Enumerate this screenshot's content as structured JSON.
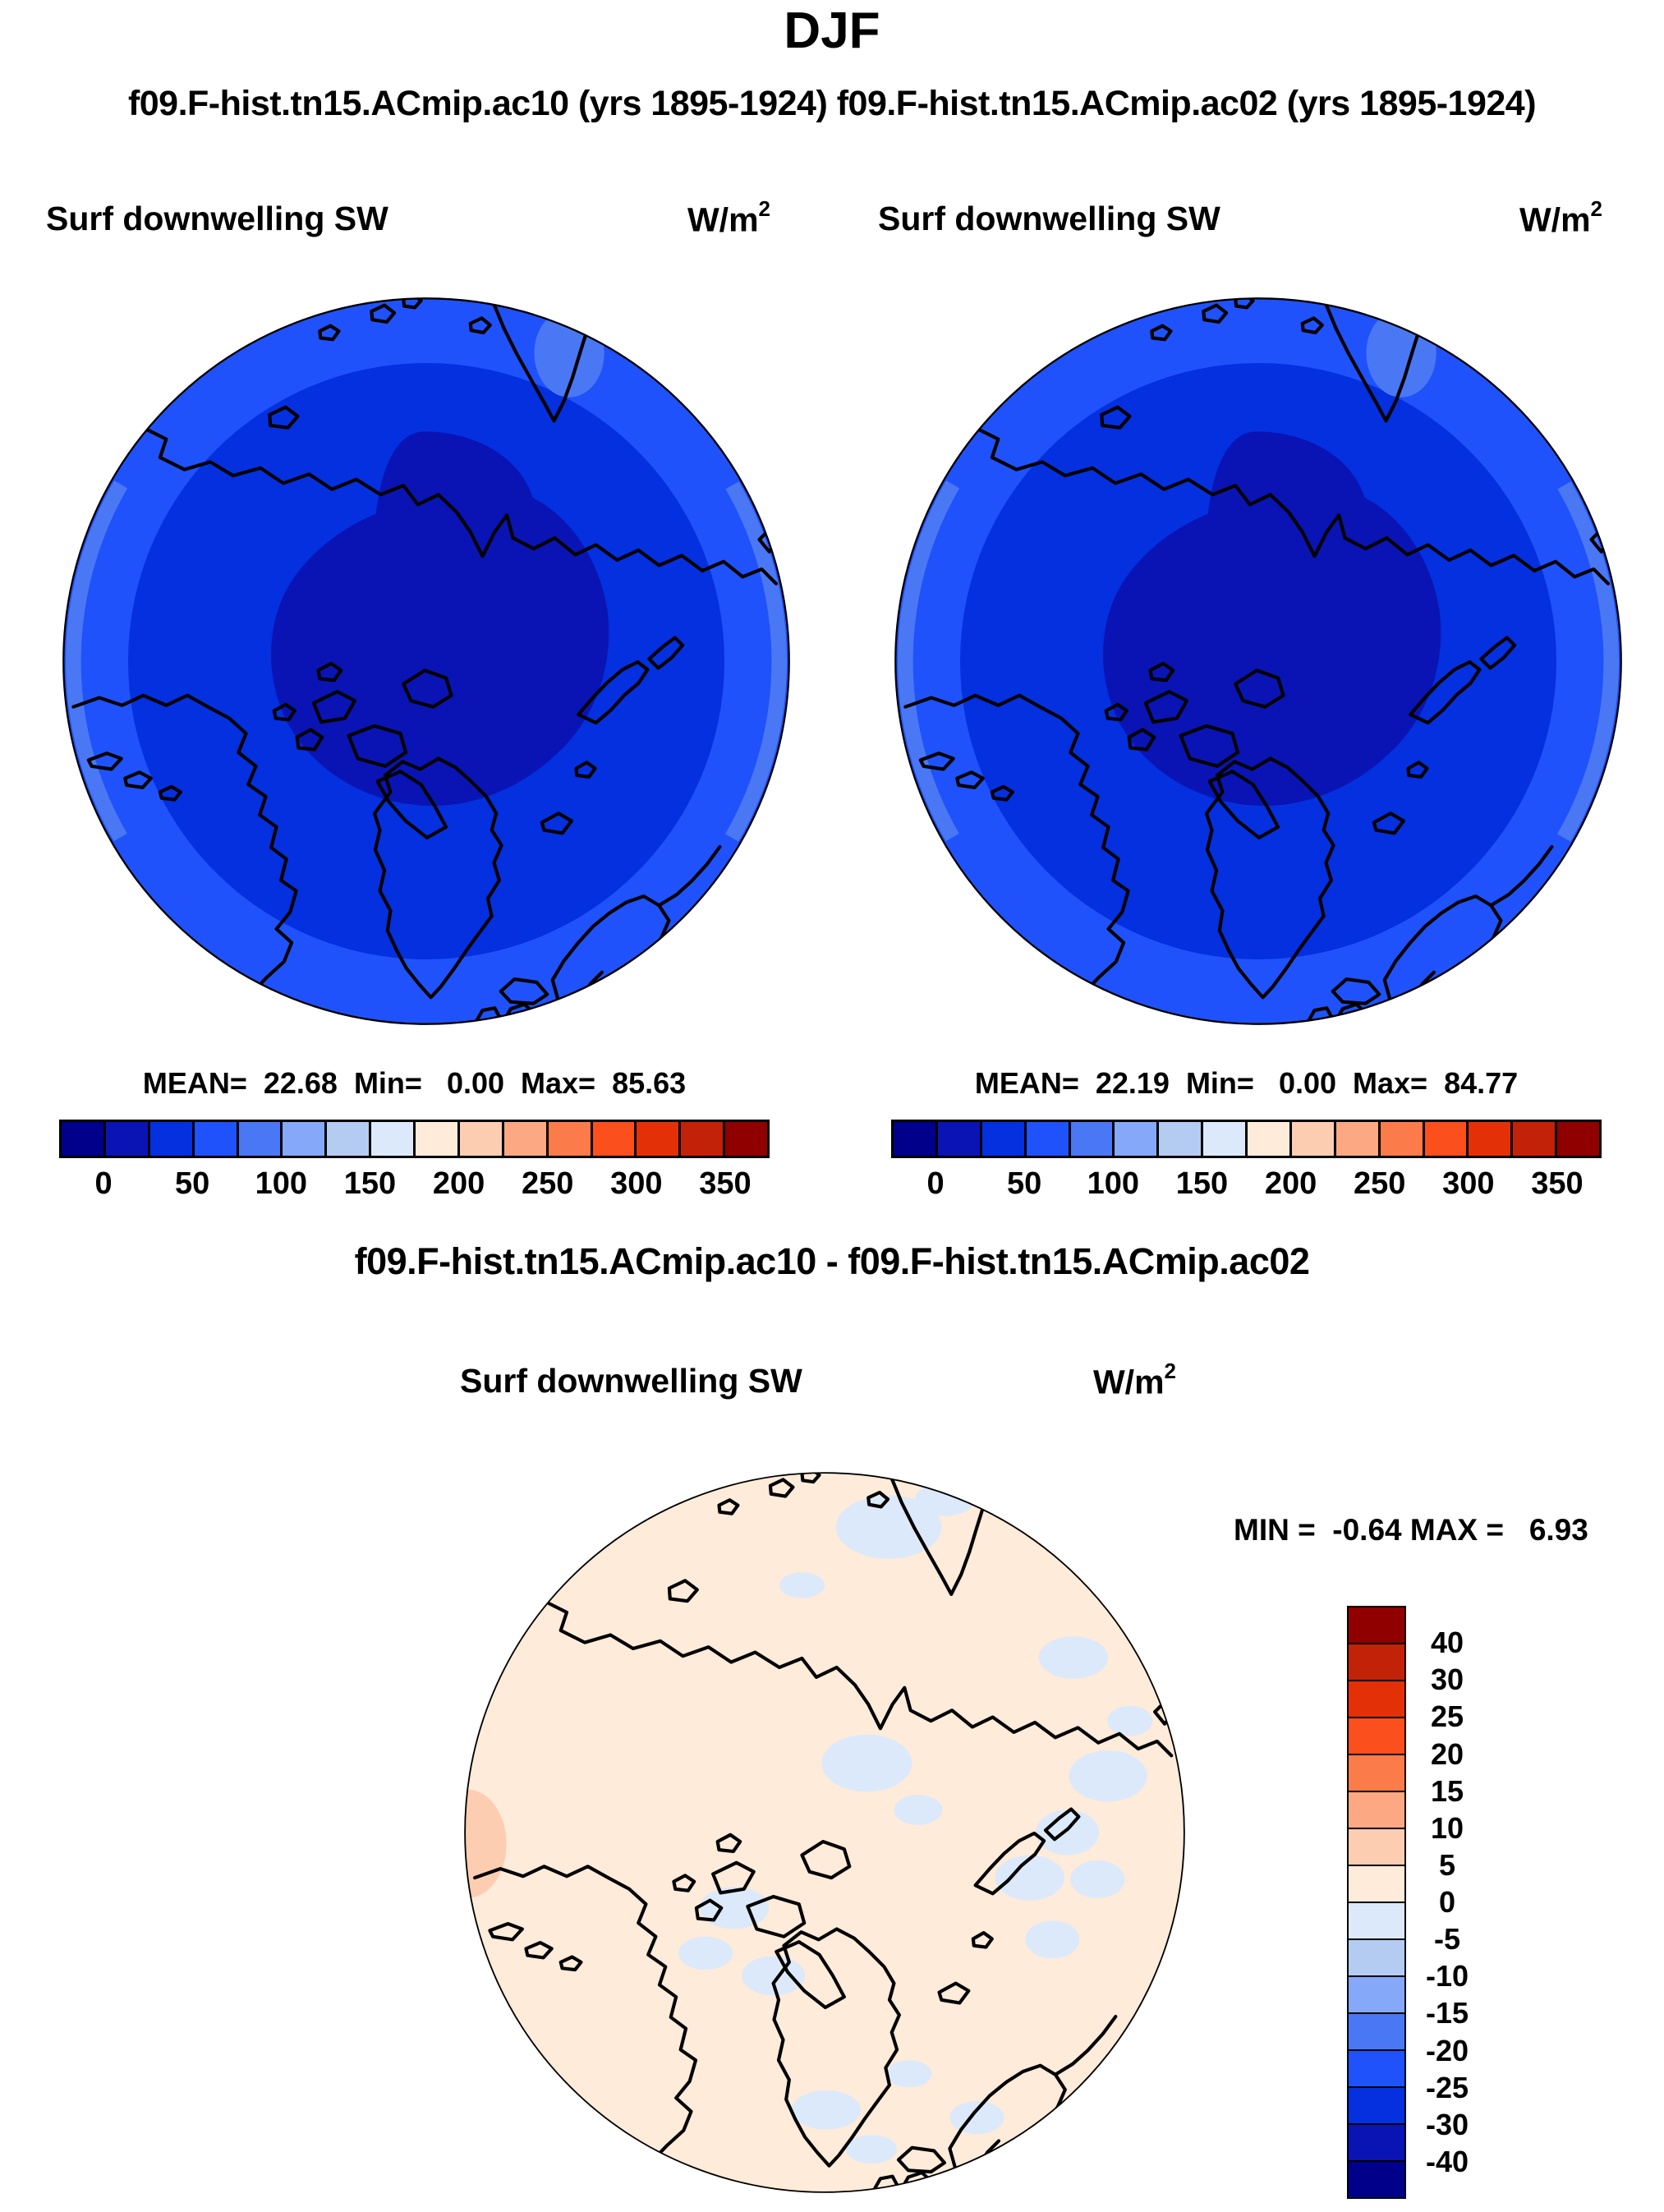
{
  "figure": {
    "title": "DJF",
    "subtitle": "f09.F-hist.tn15.ACmip.ac10 (yrs 1895-1924) f09.F-hist.tn15.ACmip.ac02 (yrs 1895-1924)",
    "diff_title": "f09.F-hist.tn15.ACmip.ac10 - f09.F-hist.tn15.ACmip.ac02"
  },
  "panels": [
    {
      "id": "top-left",
      "field": "Surf downwelling SW",
      "units_base": "W/m",
      "units_exp": "2",
      "stats": "MEAN=  22.68  Min=   0.00  Max=  85.63"
    },
    {
      "id": "top-right",
      "field": "Surf downwelling SW",
      "units_base": "W/m",
      "units_exp": "2",
      "stats": "MEAN=  22.19  Min=   0.00  Max=  84.77"
    },
    {
      "id": "bottom-difference",
      "field": "Surf downwelling SW",
      "units_base": "W/m",
      "units_exp": "2",
      "stats": "MIN =  -0.64 MAX =   6.93"
    }
  ],
  "palette": {
    "sw_levels": [
      "#00008B",
      "#0A14B4",
      "#0430E0",
      "#1F52FA",
      "#4A78F5",
      "#85A8F8",
      "#B4CCF2",
      "#DCE9FA",
      "#FEEBD9",
      "#FDCDB2",
      "#FCA983",
      "#FC7B4A",
      "#FB4F1D",
      "#E33007",
      "#C22208",
      "#900000"
    ]
  },
  "colorbars": {
    "horizontal": {
      "n_cells": 16,
      "tick_labels": [
        "0",
        "50",
        "100",
        "150",
        "200",
        "250",
        "300",
        "350"
      ]
    },
    "vertical": {
      "n_cells": 16,
      "tick_labels": [
        "40",
        "30",
        "25",
        "20",
        "15",
        "10",
        "5",
        "0",
        "-5",
        "-10",
        "-15",
        "-20",
        "-25",
        "-30",
        "-40"
      ]
    }
  },
  "chart_data": [
    {
      "type": "heatmap",
      "panel": "top-left",
      "title": "Surf downwelling SW",
      "model": "f09.F-hist.tn15.ACmip.ac10",
      "years": "1895-1924",
      "season": "DJF",
      "units": "W/m2",
      "projection": "north-polar-stereographic",
      "stats": {
        "mean": 22.68,
        "min": 0.0,
        "max": 85.63
      },
      "colorbar": {
        "orientation": "horizontal",
        "labeled_ticks": [
          0,
          50,
          100,
          150,
          200,
          250,
          300,
          350
        ],
        "level_step": 25,
        "n_cells": 16
      },
      "pattern": "lowest SW (0-25 W/m2, dark blue) over the central Arctic, increasing outward through 25-50 and 50-75 W/m2 bands to 75-100 W/m2 (lighter blue) at the map edge"
    },
    {
      "type": "heatmap",
      "panel": "top-right",
      "title": "Surf downwelling SW",
      "model": "f09.F-hist.tn15.ACmip.ac02",
      "years": "1895-1924",
      "season": "DJF",
      "units": "W/m2",
      "projection": "north-polar-stereographic",
      "stats": {
        "mean": 22.19,
        "min": 0.0,
        "max": 84.77
      },
      "colorbar": {
        "orientation": "horizontal",
        "labeled_ticks": [
          0,
          50,
          100,
          150,
          200,
          250,
          300,
          350
        ],
        "level_step": 25,
        "n_cells": 16
      },
      "pattern": "visually identical distribution to top-left panel: dark blue polar minimum surrounded by brighter blue bands toward the edge"
    },
    {
      "type": "heatmap",
      "panel": "bottom-difference",
      "title": "Surf downwelling SW",
      "expression": "f09.F-hist.tn15.ACmip.ac10 - f09.F-hist.tn15.ACmip.ac02",
      "units": "W/m2",
      "projection": "north-polar-stereographic",
      "stats": {
        "min": -0.64,
        "max": 6.93
      },
      "colorbar": {
        "orientation": "vertical",
        "labeled_ticks": [
          40,
          30,
          25,
          20,
          15,
          10,
          5,
          0,
          -5,
          -10,
          -15,
          -20,
          -25,
          -30,
          -40
        ],
        "n_cells": 16
      },
      "pattern": "mostly 0 to +5 W/m2 (pale peach) with scattered -5 to 0 W/m2 patches (pale blue) and one small +5 to +10 W/m2 spot at the far western edge"
    }
  ]
}
